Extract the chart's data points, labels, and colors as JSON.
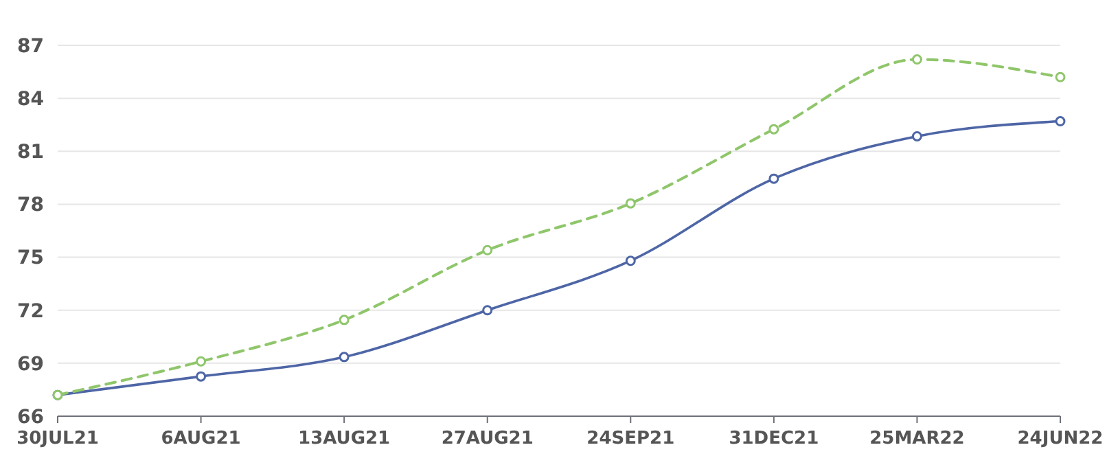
{
  "chart_data": {
    "type": "line",
    "categories": [
      "30JUL21",
      "6AUG21",
      "13AUG21",
      "27AUG21",
      "24SEP21",
      "31DEC21",
      "25MAR22",
      "24JUN22"
    ],
    "series": [
      {
        "color": "#4e66a6",
        "line_style": "solid",
        "values": [
          67.2,
          68.25,
          69.35,
          72.0,
          74.8,
          79.45,
          81.85,
          82.7
        ]
      },
      {
        "color": "#8fc66a",
        "line_style": "dashed",
        "values": [
          67.2,
          69.1,
          71.45,
          75.4,
          78.05,
          82.25,
          86.2,
          85.2
        ]
      }
    ],
    "ylim": [
      66,
      87
    ],
    "yticks": [
      66,
      69,
      72,
      75,
      78,
      81,
      84,
      87
    ],
    "grid": "y",
    "marker": "circle"
  }
}
